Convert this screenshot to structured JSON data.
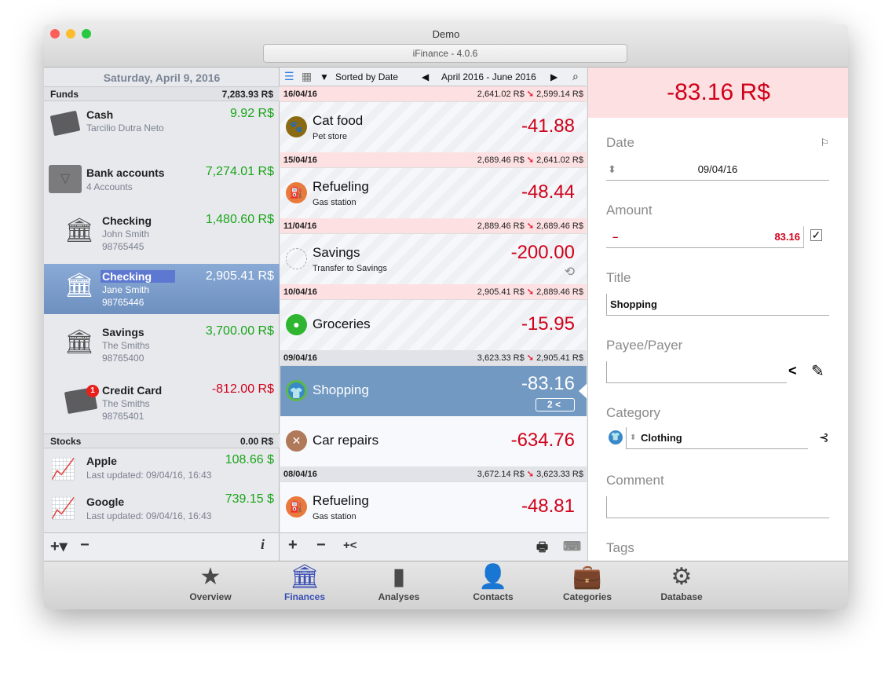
{
  "window": {
    "title": "Demo",
    "subtitle": "iFinance - 4.0.6"
  },
  "left": {
    "date": "Saturday, April 9, 2016",
    "funds": {
      "label": "Funds",
      "total": "7,283.93 R$"
    },
    "accounts": [
      {
        "name": "Cash",
        "sub1": "Tarcilio Dutra Neto",
        "sub2": "",
        "value": "9.92 R$",
        "icon": "cash-icon"
      },
      {
        "name": "Bank accounts",
        "sub1": "4 Accounts",
        "sub2": "",
        "value": "7,274.01 R$",
        "icon": "folder-icon"
      },
      {
        "name": "Checking",
        "sub1": "John Smith",
        "sub2": "98765445",
        "value": "1,480.60 R$",
        "icon": "bank-icon"
      },
      {
        "name": "Checking",
        "sub1": "Jane Smith",
        "sub2": "98765446",
        "value": "2,905.41 R$",
        "icon": "bank-icon",
        "selected": true
      },
      {
        "name": "Savings",
        "sub1": "The Smiths",
        "sub2": "98765400",
        "value": "3,700.00 R$",
        "icon": "bank-icon"
      },
      {
        "name": "Credit Card",
        "sub1": "The Smiths",
        "sub2": "98765401",
        "value": "-812.00 R$",
        "icon": "credit-card-icon",
        "badge": "1"
      }
    ],
    "stocks": {
      "label": "Stocks",
      "total": "0.00 R$"
    },
    "stock_items": [
      {
        "name": "Apple",
        "sub": "Last updated: 09/04/16, 16:43",
        "value": "108.66 $"
      },
      {
        "name": "Google",
        "sub": "Last updated: 09/04/16, 16:43",
        "value": "739.15 $"
      }
    ]
  },
  "middle": {
    "sort": "Sorted by Date",
    "range": "April 2016 - June 2016",
    "groups": [
      {
        "date": "16/04/16",
        "from": "2,641.02 R$",
        "to": "2,599.14 R$"
      },
      {
        "date": "15/04/16",
        "from": "2,689.46 R$",
        "to": "2,641.02 R$"
      },
      {
        "date": "11/04/16",
        "from": "2,889.46 R$",
        "to": "2,689.46 R$"
      },
      {
        "date": "10/04/16",
        "from": "2,905.41 R$",
        "to": "2,889.46 R$"
      },
      {
        "date": "09/04/16",
        "from": "3,623.33 R$",
        "to": "2,905.41 R$"
      },
      {
        "date": "08/04/16",
        "from": "3,672.14 R$",
        "to": "3,623.33 R$"
      }
    ],
    "transactions": [
      {
        "title": "Cat food",
        "sub": "Pet store",
        "amount": "-41.88"
      },
      {
        "title": "Refueling",
        "sub": "Gas station",
        "amount": "-48.44"
      },
      {
        "title": "Savings",
        "sub": "Transfer to Savings",
        "amount": "-200.00"
      },
      {
        "title": "Groceries",
        "sub": "",
        "amount": "-15.95"
      },
      {
        "title": "Shopping",
        "sub": "",
        "amount": "-83.16",
        "split_count": "2"
      },
      {
        "title": "Car repairs",
        "sub": "",
        "amount": "-634.76"
      },
      {
        "title": "Refueling",
        "sub": "Gas station",
        "amount": "-48.81"
      }
    ]
  },
  "detail": {
    "amount_header": "-83.16 R$",
    "date_label": "Date",
    "date": "09/04/16",
    "amount_label": "Amount",
    "amount_sign": "–",
    "amount": "83.16",
    "title_label": "Title",
    "title": "Shopping",
    "payee_label": "Payee/Payer",
    "payee": "",
    "category_label": "Category",
    "category": "Clothing",
    "comment_label": "Comment",
    "comment": "",
    "tags_label": "Tags"
  },
  "tabs": [
    {
      "label": "Overview",
      "icon": "star-icon"
    },
    {
      "label": "Finances",
      "icon": "bank-icon",
      "active": true
    },
    {
      "label": "Analyses",
      "icon": "bar-chart-icon"
    },
    {
      "label": "Contacts",
      "icon": "person-icon"
    },
    {
      "label": "Categories",
      "icon": "categories-icon"
    },
    {
      "label": "Database",
      "icon": "gear-icon"
    }
  ],
  "colors": {
    "positive": "#1aa51a",
    "negative": "#d0021b",
    "selection": "#7299c2",
    "active_tab": "#3a4fb5"
  }
}
